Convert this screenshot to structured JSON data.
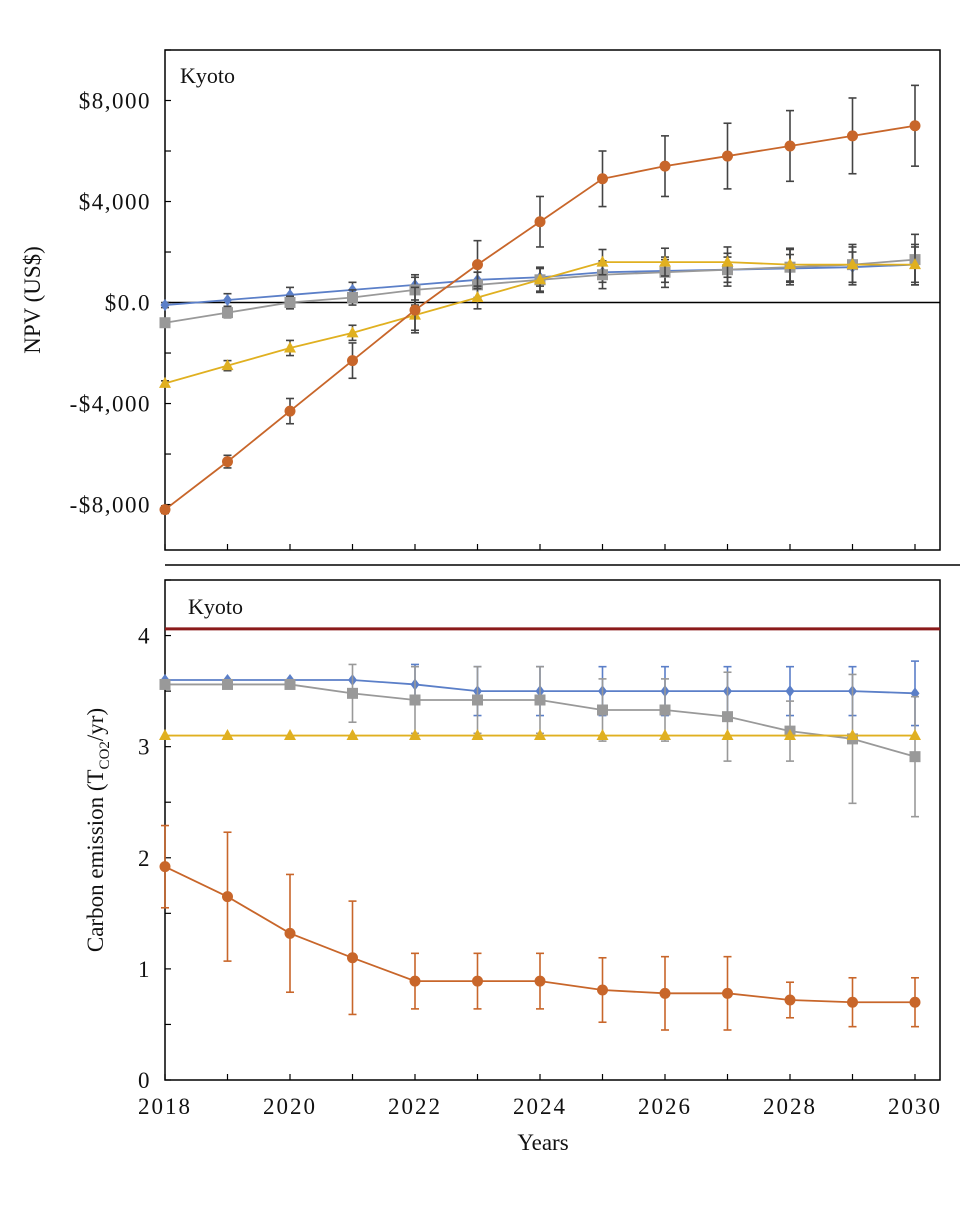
{
  "colors": {
    "series_colors": [
      "#5B7FC8",
      "#999999",
      "#E0B020",
      "#C8662A"
    ],
    "error_bar": "#444444",
    "kyoto_line": "#8B1A1A",
    "zero_line": "#000000"
  },
  "chart_data": [
    {
      "type": "line",
      "panel": "top",
      "annotation": "Kyoto",
      "xlabel": "",
      "ylabel": "NPV (US$)",
      "x": [
        2018,
        2019,
        2020,
        2021,
        2022,
        2023,
        2024,
        2025,
        2026,
        2027,
        2028,
        2029,
        2030
      ],
      "xlim": [
        2018,
        2030.4
      ],
      "ylim": [
        -9800,
        10000
      ],
      "yticks": [
        -8000,
        -4000,
        0,
        4000,
        8000
      ],
      "ytick_labels": [
        "-$8,000",
        "-$4,000",
        "$0.0",
        "$4,000",
        "$8,000"
      ],
      "grid": false,
      "legend": "none",
      "series": [
        {
          "marker": "diamond",
          "values": [
            -100,
            100,
            300,
            500,
            700,
            900,
            1000,
            1200,
            1250,
            1300,
            1350,
            1400,
            1500
          ],
          "errors": [
            100,
            250,
            300,
            300,
            300,
            300,
            350,
            400,
            450,
            500,
            550,
            600,
            700
          ]
        },
        {
          "marker": "square",
          "values": [
            -800,
            -400,
            0,
            200,
            500,
            700,
            900,
            1100,
            1200,
            1300,
            1400,
            1500,
            1700
          ],
          "errors": [
            100,
            200,
            250,
            300,
            600,
            500,
            500,
            550,
            600,
            650,
            700,
            800,
            1000
          ]
        },
        {
          "marker": "triangle",
          "values": [
            -3200,
            -2500,
            -1800,
            -1200,
            -500,
            200,
            900,
            1600,
            1600,
            1600,
            1500,
            1500,
            1500
          ],
          "errors": [
            100,
            200,
            300,
            300,
            600,
            450,
            450,
            500,
            550,
            600,
            650,
            700,
            800
          ]
        },
        {
          "marker": "circle",
          "values": [
            -8200,
            -6300,
            -4300,
            -2300,
            -300,
            1500,
            3200,
            4900,
            5400,
            5800,
            6200,
            6600,
            7000
          ],
          "errors": [
            150,
            250,
            500,
            700,
            900,
            950,
            1000,
            1100,
            1200,
            1300,
            1400,
            1500,
            1600
          ]
        }
      ]
    },
    {
      "type": "line",
      "panel": "bottom",
      "annotation": "Kyoto",
      "xlabel": "Years",
      "ylabel": "Carbon emission (T",
      "ylabel_sub": "CO2",
      "ylabel_tail": "/yr)",
      "x": [
        2018,
        2019,
        2020,
        2021,
        2022,
        2023,
        2024,
        2025,
        2026,
        2027,
        2028,
        2029,
        2030
      ],
      "xlim": [
        2018,
        2030.4
      ],
      "xticks": [
        2018,
        2020,
        2022,
        2024,
        2026,
        2028,
        2030
      ],
      "ylim": [
        0,
        4.5
      ],
      "yticks": [
        0,
        1,
        2,
        3,
        4
      ],
      "reference_line": 4.06,
      "grid": false,
      "legend": "none",
      "series": [
        {
          "marker": "diamond",
          "values": [
            3.6,
            3.6,
            3.6,
            3.6,
            3.56,
            3.5,
            3.5,
            3.5,
            3.5,
            3.5,
            3.5,
            3.5,
            3.48
          ],
          "errors": [
            0,
            0,
            0,
            0,
            0.18,
            0.22,
            0.22,
            0.22,
            0.22,
            0.22,
            0.22,
            0.22,
            0.29
          ]
        },
        {
          "marker": "square",
          "values": [
            3.56,
            3.56,
            3.56,
            3.48,
            3.42,
            3.42,
            3.42,
            3.33,
            3.33,
            3.27,
            3.14,
            3.07,
            2.91
          ],
          "errors": [
            0,
            0,
            0,
            0.26,
            0.3,
            0.3,
            0.3,
            0.28,
            0.28,
            0.4,
            0.27,
            0.58,
            0.54
          ]
        },
        {
          "marker": "triangle",
          "values": [
            3.1,
            3.1,
            3.1,
            3.1,
            3.1,
            3.1,
            3.1,
            3.1,
            3.1,
            3.1,
            3.1,
            3.1,
            3.1
          ],
          "errors": [
            0,
            0,
            0,
            0,
            0,
            0,
            0,
            0,
            0,
            0,
            0,
            0,
            0
          ]
        },
        {
          "marker": "circle",
          "values": [
            1.92,
            1.65,
            1.32,
            1.1,
            0.89,
            0.89,
            0.89,
            0.81,
            0.78,
            0.78,
            0.72,
            0.7,
            0.7
          ],
          "errors": [
            0.37,
            0.58,
            0.53,
            0.51,
            0.25,
            0.25,
            0.25,
            0.29,
            0.33,
            0.33,
            0.16,
            0.22,
            0.22
          ]
        }
      ]
    }
  ]
}
